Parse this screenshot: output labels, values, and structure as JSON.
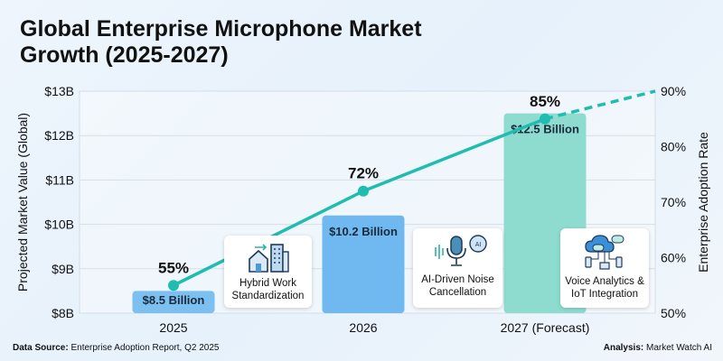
{
  "title": "Global Enterprise Microphone Market Growth (2025-2027)",
  "footer": {
    "source_label": "Data Source:",
    "source_text": "Enterprise Adoption Report, Q2 2025",
    "analysis_label": "Analysis:",
    "analysis_text": "Market Watch AI"
  },
  "callouts": [
    {
      "label": "Hybrid Work Standardization",
      "icon": "home-office-building-icon"
    },
    {
      "label": "AI-Driven Noise Cancellation",
      "icon": "microphone-ai-icon"
    },
    {
      "label": "Voice Analytics & IoT Integration",
      "icon": "cloud-devices-icon"
    }
  ],
  "chart_data": {
    "type": "bar+line",
    "categories": [
      "2025",
      "2026",
      "2027 (Forecast)"
    ],
    "bars": {
      "values": [
        8.5,
        10.2,
        12.5
      ],
      "labels": [
        "$8.5 Billion",
        "$10.2 Billion",
        "$12.5 Billion"
      ],
      "colors": [
        "#7cc0f2",
        "#6fb8f0",
        "#8edcd0"
      ]
    },
    "line": {
      "values": [
        55,
        72,
        85
      ],
      "labels": [
        "55%",
        "72%",
        "85%"
      ],
      "projection_value": 90,
      "color": "#1fbcb0"
    },
    "yleft": {
      "label": "Projected Market Value (Global)",
      "ticks": [
        "$8B",
        "$9B",
        "$10B",
        "$11B",
        "$12B",
        "$13B"
      ],
      "range": [
        8,
        13
      ]
    },
    "yright": {
      "label": "Enterprise Adoption Rate",
      "ticks": [
        "50%",
        "60%",
        "70%",
        "80%",
        "90%"
      ],
      "range": [
        50,
        90
      ]
    },
    "grid": true
  }
}
